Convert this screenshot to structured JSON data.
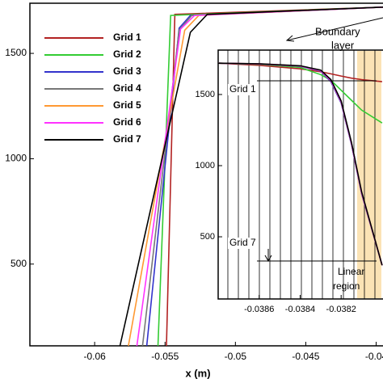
{
  "chart_data": [
    {
      "type": "line",
      "x_label": "x (m)",
      "xlim": [
        -0.0646,
        -0.0394
      ],
      "ylim": [
        112,
        1738
      ],
      "xticks": [
        -0.06,
        -0.055,
        -0.05,
        -0.045,
        -0.04
      ],
      "yticks": [
        500,
        1000,
        1500
      ],
      "series": [
        {
          "name": "Grid 1",
          "color": "#b22222",
          "x": [
            -0.0549,
            -0.0543,
            -0.0394
          ],
          "values": [
            112,
            1685,
            1720
          ]
        },
        {
          "name": "Grid 2",
          "color": "#33cc33",
          "x": [
            -0.0555,
            -0.0546,
            -0.0394
          ],
          "values": [
            112,
            1680,
            1720
          ]
        },
        {
          "name": "Grid 3",
          "color": "#3333cc",
          "x": [
            -0.0563,
            -0.054,
            -0.0532,
            -0.0394
          ],
          "values": [
            112,
            1620,
            1680,
            1720
          ]
        },
        {
          "name": "Grid 4",
          "color": "#777777",
          "x": [
            -0.0566,
            -0.054,
            -0.0531,
            -0.0394
          ],
          "values": [
            112,
            1610,
            1680,
            1720
          ]
        },
        {
          "name": "Grid 5",
          "color": "#ff9933",
          "x": [
            -0.0576,
            -0.0536,
            -0.0526,
            -0.0394
          ],
          "values": [
            112,
            1610,
            1680,
            1720
          ]
        },
        {
          "name": "Grid 6",
          "color": "#ff33ff",
          "x": [
            -0.057,
            -0.0539,
            -0.0529,
            -0.0394
          ],
          "values": [
            112,
            1615,
            1680,
            1720
          ]
        },
        {
          "name": "Grid 7",
          "color": "#000000",
          "x": [
            -0.0582,
            -0.0532,
            -0.052,
            -0.0394
          ],
          "values": [
            112,
            1600,
            1685,
            1720
          ]
        }
      ]
    },
    {
      "type": "line",
      "xlim": [
        -0.0388,
        -0.03798
      ],
      "ylim": [
        63,
        1812
      ],
      "xticks": [
        -0.0386,
        -0.0384,
        -0.0382
      ],
      "yticks": [
        500,
        1000,
        1500
      ],
      "x": [
        -0.0388,
        -0.0386,
        -0.0384,
        -0.0383,
        -0.03825,
        -0.0382,
        -0.03815,
        -0.0381,
        -0.038
      ],
      "series": [
        {
          "color": "#b22222",
          "values": [
            1720,
            1705,
            1680,
            1660,
            1645,
            1630,
            1615,
            1605,
            1590
          ]
        },
        {
          "color": "#33cc33",
          "values": [
            1720,
            1712,
            1690,
            1640,
            1600,
            1530,
            1460,
            1390,
            1300
          ]
        },
        {
          "color": "#3333cc",
          "values": [
            1720,
            1714,
            1698,
            1665,
            1590,
            1440,
            1150,
            800,
            300
          ]
        },
        {
          "color": "#777777",
          "values": [
            1720,
            1714,
            1699,
            1667,
            1595,
            1445,
            1155,
            805,
            300
          ]
        },
        {
          "color": "#ff9933",
          "values": [
            1720,
            1715,
            1700,
            1670,
            1600,
            1450,
            1160,
            810,
            300
          ]
        },
        {
          "color": "#ff33ff",
          "values": [
            1720,
            1715,
            1700,
            1668,
            1598,
            1448,
            1158,
            808,
            300
          ]
        },
        {
          "color": "#000000",
          "values": [
            1720,
            1716,
            1702,
            1672,
            1605,
            1455,
            1165,
            815,
            300
          ]
        }
      ],
      "annotations": {
        "boundary": [
          "Boundary",
          "layer"
        ],
        "grid1": "Grid 1",
        "grid7": "Grid 7",
        "linear": [
          "Linear",
          "region"
        ]
      }
    }
  ]
}
